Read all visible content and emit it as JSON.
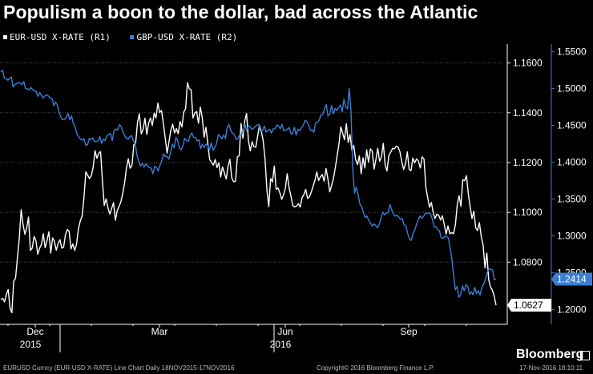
{
  "title": "Populism a boon to the dollar, bad across the Atlantic",
  "colors": {
    "eur": "#ffffff",
    "gbp": "#3a7fd5",
    "background": "#000000",
    "gridline": "#555555"
  },
  "footer": {
    "left": "EURUSD Curncy (EUR-USD X-RATE) Line Chart  Daily 18NOV2015-17NOV2016",
    "center": "Copyright© 2016 Bloomberg Finance L.P.",
    "right": "17-Nov-2016 18:10:11",
    "brand": "Bloomberg"
  },
  "chart_data": {
    "type": "line",
    "title": "Populism a boon to the dollar, bad across the Atlantic",
    "x_ticks": [
      {
        "label": "Dec",
        "sub": "2015"
      },
      {
        "label": "Mar",
        "sub": ""
      },
      {
        "label": "Jun",
        "sub": "2016"
      },
      {
        "label": "Sep",
        "sub": ""
      }
    ],
    "axes": {
      "r1": {
        "ticks": [
          "1.1600",
          "1.1400",
          "1.1200",
          "1.1000",
          "1.0800"
        ],
        "range": [
          1.055,
          1.166
        ]
      },
      "r2": {
        "ticks": [
          "1.5500",
          "1.5000",
          "1.4500",
          "1.4000",
          "1.3500",
          "1.3000",
          "1.2500",
          "1.2000"
        ],
        "range": [
          1.18,
          1.555
        ]
      }
    },
    "grid": "horizontal, dotted",
    "legend_position": "top-left",
    "series": [
      {
        "name": "EUR-USD X-RATE (R1)",
        "axis": "r1",
        "last_value": "1.0627",
        "values": [
          1.065,
          1.0655,
          1.064,
          1.067,
          1.069,
          1.0615,
          1.0597,
          1.0723,
          1.0735,
          1.082,
          1.0896,
          1.101,
          1.0953,
          1.0912,
          1.0936,
          1.0981,
          1.0847,
          1.0856,
          1.0903,
          1.0887,
          1.0832,
          1.0856,
          1.0871,
          1.0914,
          1.0858,
          1.0886,
          1.0922,
          1.0836,
          1.0897,
          1.0884,
          1.0848,
          1.0875,
          1.089,
          1.0856,
          1.086,
          1.0911,
          1.0931,
          1.0923,
          1.0853,
          1.0873,
          1.0847,
          1.0871,
          1.0934,
          1.0966,
          1.0985,
          1.106,
          1.1163,
          1.1149,
          1.1136,
          1.1147,
          1.1182,
          1.1248,
          1.1217,
          1.1237,
          1.1244,
          1.1127,
          1.1028,
          1.1054,
          1.1018,
          1.0993,
          1.1016,
          1.1039,
          1.0968,
          1.1007,
          1.1024,
          1.1043,
          1.1077,
          1.1118,
          1.1178,
          1.1215,
          1.1177,
          1.119,
          1.1271,
          1.1279,
          1.1361,
          1.1396,
          1.1315,
          1.1333,
          1.1378,
          1.1313,
          1.1359,
          1.1379,
          1.1349,
          1.1399,
          1.1379,
          1.1439,
          1.1401,
          1.1409,
          1.1356,
          1.1298,
          1.1238,
          1.1282,
          1.1329,
          1.1354,
          1.1319,
          1.1336,
          1.1316,
          1.1365,
          1.1343,
          1.1403,
          1.1416,
          1.1521,
          1.1497,
          1.1492,
          1.1379,
          1.1399,
          1.1405,
          1.1358,
          1.1423,
          1.1379,
          1.1302,
          1.1342,
          1.1277,
          1.1212,
          1.1202,
          1.119,
          1.1212,
          1.118,
          1.1199,
          1.1142,
          1.1183,
          1.1158,
          1.1134,
          1.1186,
          1.1213,
          1.1138,
          1.1123,
          1.1125,
          1.1223,
          1.1228,
          1.1357,
          1.1297,
          1.1366,
          1.1397,
          1.1289,
          1.1247,
          1.1284,
          1.1263,
          1.1262,
          1.1305,
          1.1349,
          1.1325,
          1.1289,
          1.1211,
          1.1089,
          1.1023,
          1.1136,
          1.1122,
          1.1186,
          1.1092,
          1.1098,
          1.1079,
          1.1052,
          1.107,
          1.1097,
          1.1155,
          1.11,
          1.1066,
          1.1028,
          1.1022,
          1.1025,
          1.1035,
          1.1021,
          1.1059,
          1.1071,
          1.1092,
          1.1056,
          1.1062,
          1.1081,
          1.1105,
          1.1129,
          1.1162,
          1.1128,
          1.1143,
          1.1152,
          1.1125,
          1.1176,
          1.1134,
          1.1082,
          1.1108,
          1.1136,
          1.1179,
          1.1227,
          1.1275,
          1.1343,
          1.1318,
          1.1292,
          1.1356,
          1.1281,
          1.1313,
          1.1249,
          1.1269,
          1.1213,
          1.1192,
          1.1227,
          1.1155,
          1.1219,
          1.1178,
          1.1251,
          1.1201,
          1.1255,
          1.1246,
          1.1174,
          1.1212,
          1.1257,
          1.1205,
          1.1222,
          1.1277,
          1.1191,
          1.1166,
          1.1229,
          1.1242,
          1.1257,
          1.1255,
          1.1266,
          1.1262,
          1.1243,
          1.1203,
          1.1172,
          1.1195,
          1.1243,
          1.1173,
          1.1167,
          1.1218,
          1.1199,
          1.1215,
          1.1206,
          1.1178,
          1.1223,
          1.1214,
          1.1101,
          1.1059,
          1.102,
          1.104,
          1.0999,
          1.0975,
          1.0993,
          1.0988,
          1.0969,
          1.0986,
          1.0951,
          1.0913,
          1.0945,
          1.0914,
          1.0919,
          1.0914,
          1.0951,
          1.103,
          1.1067,
          1.1024,
          1.1131,
          1.1127,
          1.1147,
          1.1074,
          1.1022,
          1.0975,
          1.1005,
          1.0938,
          1.0927,
          1.0959,
          1.0901,
          1.0868,
          1.0777,
          1.0836,
          1.073,
          1.07,
          1.0687,
          1.0664,
          1.0627
        ]
      },
      {
        "name": "GBP-USD X-RATE (R2)",
        "axis": "r2",
        "last_value": "1.2414",
        "values": [
          1.5228,
          1.5249,
          1.5142,
          1.5134,
          1.5113,
          1.5138,
          1.5157,
          1.5022,
          1.5055,
          1.5066,
          1.5082,
          1.5075,
          1.5053,
          1.5096,
          1.4999,
          1.4997,
          1.4983,
          1.5014,
          1.4985,
          1.4967,
          1.4961,
          1.4895,
          1.4946,
          1.4904,
          1.4873,
          1.4901,
          1.4915,
          1.4899,
          1.4871,
          1.4863,
          1.4768,
          1.4816,
          1.4775,
          1.4678,
          1.4606,
          1.4577,
          1.4583,
          1.4609,
          1.4664,
          1.4575,
          1.463,
          1.4526,
          1.4483,
          1.4388,
          1.4346,
          1.4316,
          1.4301,
          1.432,
          1.4233,
          1.4235,
          1.4323,
          1.4304,
          1.4333,
          1.4282,
          1.4283,
          1.4291,
          1.4351,
          1.4256,
          1.4315,
          1.4296,
          1.4359,
          1.4378,
          1.4391,
          1.4293,
          1.443,
          1.4452,
          1.4436,
          1.4509,
          1.4487,
          1.4416,
          1.4361,
          1.4325,
          1.4313,
          1.4347,
          1.4363,
          1.4288,
          1.4259,
          1.4094,
          1.4014,
          1.3948,
          1.3988,
          1.3936,
          1.3978,
          1.3953,
          1.3924,
          1.3922,
          1.3843,
          1.3947,
          1.3931,
          1.3884,
          1.3959,
          1.4021,
          1.4112,
          1.4079,
          1.4081,
          1.4041,
          1.4139,
          1.4245,
          1.4196,
          1.4336,
          1.4295,
          1.4194,
          1.4168,
          1.4226,
          1.4327,
          1.4293,
          1.4283,
          1.4355,
          1.4397,
          1.4339,
          1.4337,
          1.4287,
          1.4305,
          1.4185,
          1.4245,
          1.4201,
          1.4245,
          1.4233,
          1.4165,
          1.4264,
          1.4161,
          1.42,
          1.4256,
          1.4374,
          1.4353,
          1.4316,
          1.4372,
          1.4324,
          1.4469,
          1.4512,
          1.4434,
          1.4396,
          1.4378,
          1.4309,
          1.4322,
          1.4371,
          1.437,
          1.4411,
          1.4518,
          1.4432,
          1.4495,
          1.4484,
          1.4446,
          1.4462,
          1.4486,
          1.4507,
          1.4513,
          1.4408,
          1.4434,
          1.4492,
          1.441,
          1.4434,
          1.4448,
          1.4396,
          1.4454,
          1.4454,
          1.4504,
          1.4496,
          1.4454,
          1.4515,
          1.4428,
          1.4435,
          1.4447,
          1.4473,
          1.4387,
          1.4389,
          1.4475,
          1.4368,
          1.4449,
          1.4426,
          1.4474,
          1.4495,
          1.4567,
          1.4554,
          1.4512,
          1.4433,
          1.4439,
          1.4406,
          1.4534,
          1.4544,
          1.4571,
          1.4644,
          1.4645,
          1.4725,
          1.4782,
          1.4628,
          1.4652,
          1.4771,
          1.4659,
          1.4732,
          1.4703,
          1.4746,
          1.4776,
          1.4687,
          1.4854,
          1.4749,
          1.4724,
          1.5003,
          1.4685,
          1.3908,
          1.3579,
          1.3663,
          1.3563,
          1.3429,
          1.3399,
          1.3316,
          1.3252,
          1.3271,
          1.3211,
          1.3174,
          1.3134,
          1.3163,
          1.3139,
          1.3112,
          1.3161,
          1.3242,
          1.3324,
          1.3287,
          1.3311,
          1.3316,
          1.3427,
          1.3352,
          1.3296,
          1.3268,
          1.3284,
          1.3253,
          1.3228,
          1.3236,
          1.3152,
          1.3139,
          1.3037,
          1.2961,
          1.2938,
          1.3031,
          1.3079,
          1.3157,
          1.3221,
          1.3268,
          1.3242,
          1.3263,
          1.3307,
          1.3305,
          1.3315,
          1.3297,
          1.3228,
          1.3122,
          1.3126,
          1.3086,
          1.3067,
          1.2976,
          1.2967,
          1.2997,
          1.2992,
          1.2977,
          1.2846,
          1.2693,
          1.2471,
          1.2269,
          1.2314,
          1.2166,
          1.2205,
          1.2321,
          1.2255,
          1.2337,
          1.2316,
          1.2208,
          1.224,
          1.2201,
          1.2301,
          1.2216,
          1.2257,
          1.2198,
          1.2302,
          1.2345,
          1.2412,
          1.2508,
          1.2555,
          1.2546,
          1.2539,
          1.2408,
          1.2414
        ]
      }
    ]
  }
}
